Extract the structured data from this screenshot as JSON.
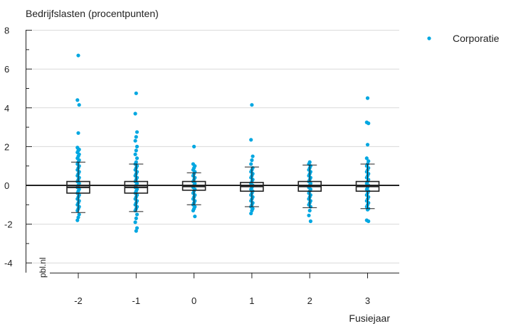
{
  "chart_data": {
    "type": "scatter",
    "subtype": "box-with-points",
    "title": "Bedrijfslasten (procentpunten)",
    "xlabel": "Fusiejaar",
    "ylabel": "",
    "source_tag": "pbl.nl",
    "categories": [
      "-2",
      "-1",
      "0",
      "1",
      "2",
      "3"
    ],
    "ylim": [
      -4.5,
      8
    ],
    "yticks": [
      -4,
      -2,
      0,
      2,
      4,
      6,
      8
    ],
    "ytick_labels": [
      "-4",
      "-2",
      "0",
      "2",
      "4",
      "6",
      "8"
    ],
    "grid": true,
    "legend": {
      "position": "top-right",
      "entries": [
        {
          "name": "Corporatie",
          "color": "#00a7e1"
        }
      ]
    },
    "colors": {
      "points": "#00a7e1",
      "box": "#222222",
      "grid": "#d9d9d9",
      "zero_line": "#222222"
    },
    "series": [
      {
        "name": "Corporatie",
        "points": [
          {
            "x": "-2",
            "y": [
              6.7,
              4.4,
              4.15,
              2.7,
              1.95,
              1.85,
              1.8,
              1.7,
              1.6,
              1.5,
              1.4,
              1.3,
              1.2,
              1.1,
              1.0,
              0.9,
              0.8,
              0.7,
              0.6,
              0.5,
              0.4,
              0.3,
              0.2,
              0.1,
              0.0,
              -0.1,
              -0.2,
              -0.3,
              -0.4,
              -0.5,
              -0.6,
              -0.7,
              -0.8,
              -0.9,
              -1.0,
              -1.1,
              -1.2,
              -1.3,
              -1.5,
              -1.65,
              -1.8
            ]
          },
          {
            "x": "-1",
            "y": [
              4.75,
              3.7,
              2.75,
              2.5,
              2.3,
              2.0,
              1.8,
              1.6,
              1.4,
              1.2,
              1.1,
              1.0,
              0.9,
              0.8,
              0.7,
              0.6,
              0.5,
              0.4,
              0.3,
              0.2,
              0.1,
              0.0,
              -0.1,
              -0.2,
              -0.3,
              -0.4,
              -0.5,
              -0.6,
              -0.7,
              -0.8,
              -0.9,
              -1.0,
              -1.1,
              -1.2,
              -1.3,
              -1.5,
              -1.7,
              -1.9,
              -2.2,
              -2.35
            ]
          },
          {
            "x": "0",
            "y": [
              2.0,
              1.1,
              1.0,
              0.9,
              0.8,
              0.7,
              0.6,
              0.5,
              0.4,
              0.3,
              0.2,
              0.1,
              0.0,
              -0.1,
              -0.2,
              -0.3,
              -0.4,
              -0.5,
              -0.6,
              -0.7,
              -0.8,
              -0.9,
              -1.0,
              -1.1,
              -1.2,
              -1.3,
              -1.6
            ]
          },
          {
            "x": "1",
            "y": [
              4.15,
              2.35,
              1.5,
              1.3,
              1.1,
              0.9,
              0.8,
              0.7,
              0.6,
              0.5,
              0.4,
              0.3,
              0.2,
              0.1,
              0.0,
              -0.1,
              -0.2,
              -0.3,
              -0.4,
              -0.5,
              -0.6,
              -0.7,
              -0.8,
              -0.9,
              -1.0,
              -1.1,
              -1.2,
              -1.3,
              -1.45
            ]
          },
          {
            "x": "2",
            "y": [
              1.2,
              1.1,
              1.0,
              0.9,
              0.8,
              0.7,
              0.6,
              0.5,
              0.4,
              0.3,
              0.2,
              0.1,
              0.0,
              -0.1,
              -0.2,
              -0.3,
              -0.4,
              -0.5,
              -0.6,
              -0.7,
              -0.8,
              -0.9,
              -1.0,
              -1.1,
              -1.3,
              -1.55,
              -1.85
            ]
          },
          {
            "x": "3",
            "y": [
              4.5,
              3.25,
              3.2,
              2.1,
              1.4,
              1.25,
              1.1,
              1.0,
              0.9,
              0.8,
              0.7,
              0.6,
              0.5,
              0.4,
              0.3,
              0.2,
              0.1,
              0.0,
              -0.1,
              -0.2,
              -0.3,
              -0.4,
              -0.5,
              -0.6,
              -0.7,
              -0.8,
              -0.9,
              -1.0,
              -1.1,
              -1.2,
              -1.25,
              -1.8,
              -1.85
            ]
          }
        ]
      }
    ],
    "boxes": [
      {
        "x": "-2",
        "whisker_low": -1.4,
        "q1": -0.4,
        "median": -0.1,
        "q3": 0.2,
        "whisker_high": 1.2
      },
      {
        "x": "-1",
        "whisker_low": -1.35,
        "q1": -0.4,
        "median": -0.1,
        "q3": 0.2,
        "whisker_high": 1.1
      },
      {
        "x": "0",
        "whisker_low": -1.0,
        "q1": -0.25,
        "median": -0.05,
        "q3": 0.2,
        "whisker_high": 0.65
      },
      {
        "x": "1",
        "whisker_low": -1.1,
        "q1": -0.3,
        "median": -0.05,
        "q3": 0.15,
        "whisker_high": 0.95
      },
      {
        "x": "2",
        "whisker_low": -1.15,
        "q1": -0.3,
        "median": -0.05,
        "q3": 0.2,
        "whisker_high": 1.05
      },
      {
        "x": "3",
        "whisker_low": -1.2,
        "q1": -0.3,
        "median": -0.05,
        "q3": 0.2,
        "whisker_high": 1.1
      }
    ]
  }
}
